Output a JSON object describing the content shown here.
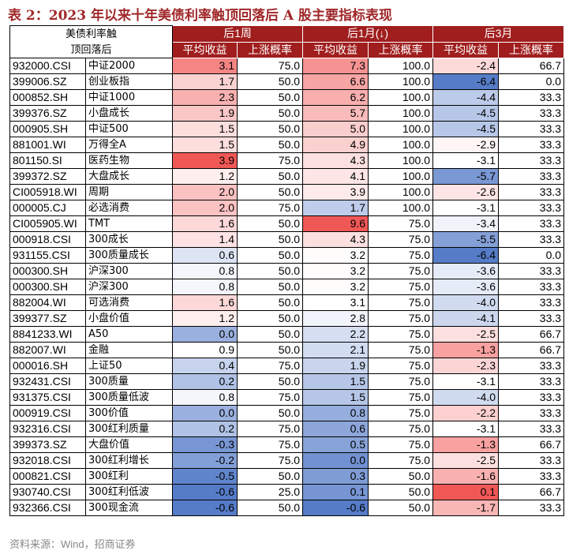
{
  "title": "表 2：2023 年以来十年美债利率触顶回落后 A 股主要指标表现",
  "table": {
    "corner": [
      "美债利率触",
      "顶回落后"
    ],
    "groups": [
      "后1周",
      "后1月(↓)",
      "后3月"
    ],
    "subheaders": [
      "平均收益",
      "上涨概率",
      "平均收益",
      "上涨概率",
      "平均收益",
      "上涨概率"
    ],
    "rows": [
      [
        "932000.CSI",
        "中证2000",
        "3.1",
        "75.0",
        "7.3",
        "100.0",
        "-2.4",
        "66.7"
      ],
      [
        "399006.SZ",
        "创业板指",
        "1.7",
        "50.0",
        "6.6",
        "100.0",
        "-6.4",
        "0.0"
      ],
      [
        "000852.SH",
        "中证1000",
        "2.3",
        "50.0",
        "6.2",
        "100.0",
        "-4.4",
        "33.3"
      ],
      [
        "399376.SZ",
        "小盘成长",
        "1.9",
        "50.0",
        "5.7",
        "100.0",
        "-4.5",
        "33.3"
      ],
      [
        "000905.SH",
        "中证500",
        "1.5",
        "50.0",
        "5.0",
        "100.0",
        "-4.5",
        "33.3"
      ],
      [
        "881001.WI",
        "万得全A",
        "1.5",
        "50.0",
        "4.9",
        "100.0",
        "-2.9",
        "33.3"
      ],
      [
        "801150.SI",
        "医药生物",
        "3.9",
        "75.0",
        "4.3",
        "100.0",
        "-3.1",
        "33.3"
      ],
      [
        "399372.SZ",
        "大盘成长",
        "1.2",
        "50.0",
        "4.1",
        "100.0",
        "-5.7",
        "33.3"
      ],
      [
        "CI005918.WI",
        "周期",
        "2.0",
        "50.0",
        "3.9",
        "100.0",
        "-2.6",
        "33.3"
      ],
      [
        "000005.CJ",
        "必选消费",
        "2.0",
        "75.0",
        "1.7",
        "100.0",
        "-3.1",
        "33.3"
      ],
      [
        "CI005905.WI",
        "TMT",
        "1.6",
        "50.0",
        "9.6",
        "75.0",
        "-3.4",
        "33.3"
      ],
      [
        "000918.CSI",
        "300成长",
        "1.4",
        "50.0",
        "4.3",
        "75.0",
        "-5.5",
        "33.3"
      ],
      [
        "931155.CSI",
        "300质量成长",
        "0.6",
        "50.0",
        "3.2",
        "75.0",
        "-6.4",
        "0.0"
      ],
      [
        "000300.SH",
        "沪深300",
        "0.8",
        "50.0",
        "3.2",
        "75.0",
        "-3.6",
        "33.3"
      ],
      [
        "000300.SH",
        "沪深300",
        "0.8",
        "50.0",
        "3.2",
        "75.0",
        "-3.6",
        "33.3"
      ],
      [
        "882004.WI",
        "可选消费",
        "1.6",
        "50.0",
        "3.1",
        "75.0",
        "-4.0",
        "33.3"
      ],
      [
        "399377.SZ",
        "小盘价值",
        "1.2",
        "50.0",
        "2.8",
        "75.0",
        "-4.1",
        "33.3"
      ],
      [
        "8841233.WI",
        "A50",
        "0.0",
        "50.0",
        "2.2",
        "75.0",
        "-2.5",
        "66.7"
      ],
      [
        "882007.WI",
        "金融",
        "0.9",
        "50.0",
        "2.1",
        "75.0",
        "-1.3",
        "66.7"
      ],
      [
        "000016.SH",
        "上证50",
        "0.4",
        "75.0",
        "1.9",
        "75.0",
        "-2.3",
        "33.3"
      ],
      [
        "932431.CSI",
        "300质量",
        "0.2",
        "50.0",
        "1.5",
        "75.0",
        "-3.1",
        "33.3"
      ],
      [
        "931375.CSI",
        "300质量低波",
        "0.8",
        "75.0",
        "1.5",
        "75.0",
        "-4.0",
        "33.3"
      ],
      [
        "000919.CSI",
        "300价值",
        "0.0",
        "50.0",
        "0.8",
        "75.0",
        "-2.2",
        "33.3"
      ],
      [
        "932316.CSI",
        "300红利质量",
        "0.2",
        "75.0",
        "0.6",
        "75.0",
        "-3.1",
        "33.3"
      ],
      [
        "399373.SZ",
        "大盘价值",
        "-0.3",
        "75.0",
        "0.5",
        "75.0",
        "-1.3",
        "66.7"
      ],
      [
        "932018.CSI",
        "300红利增长",
        "-0.2",
        "75.0",
        "0.0",
        "75.0",
        "-2.5",
        "33.3"
      ],
      [
        "000821.CSI",
        "300红利",
        "-0.5",
        "50.0",
        "0.3",
        "50.0",
        "-1.6",
        "33.3"
      ],
      [
        "930740.CSI",
        "300红利低波",
        "-0.6",
        "25.0",
        "0.1",
        "50.0",
        "0.1",
        "66.7"
      ],
      [
        "932366.CSI",
        "300现金流",
        "-0.6",
        "50.0",
        "-0.6",
        "50.0",
        "-1.7",
        "33.3"
      ]
    ]
  },
  "source": "资料来源：Wind，招商证券"
}
